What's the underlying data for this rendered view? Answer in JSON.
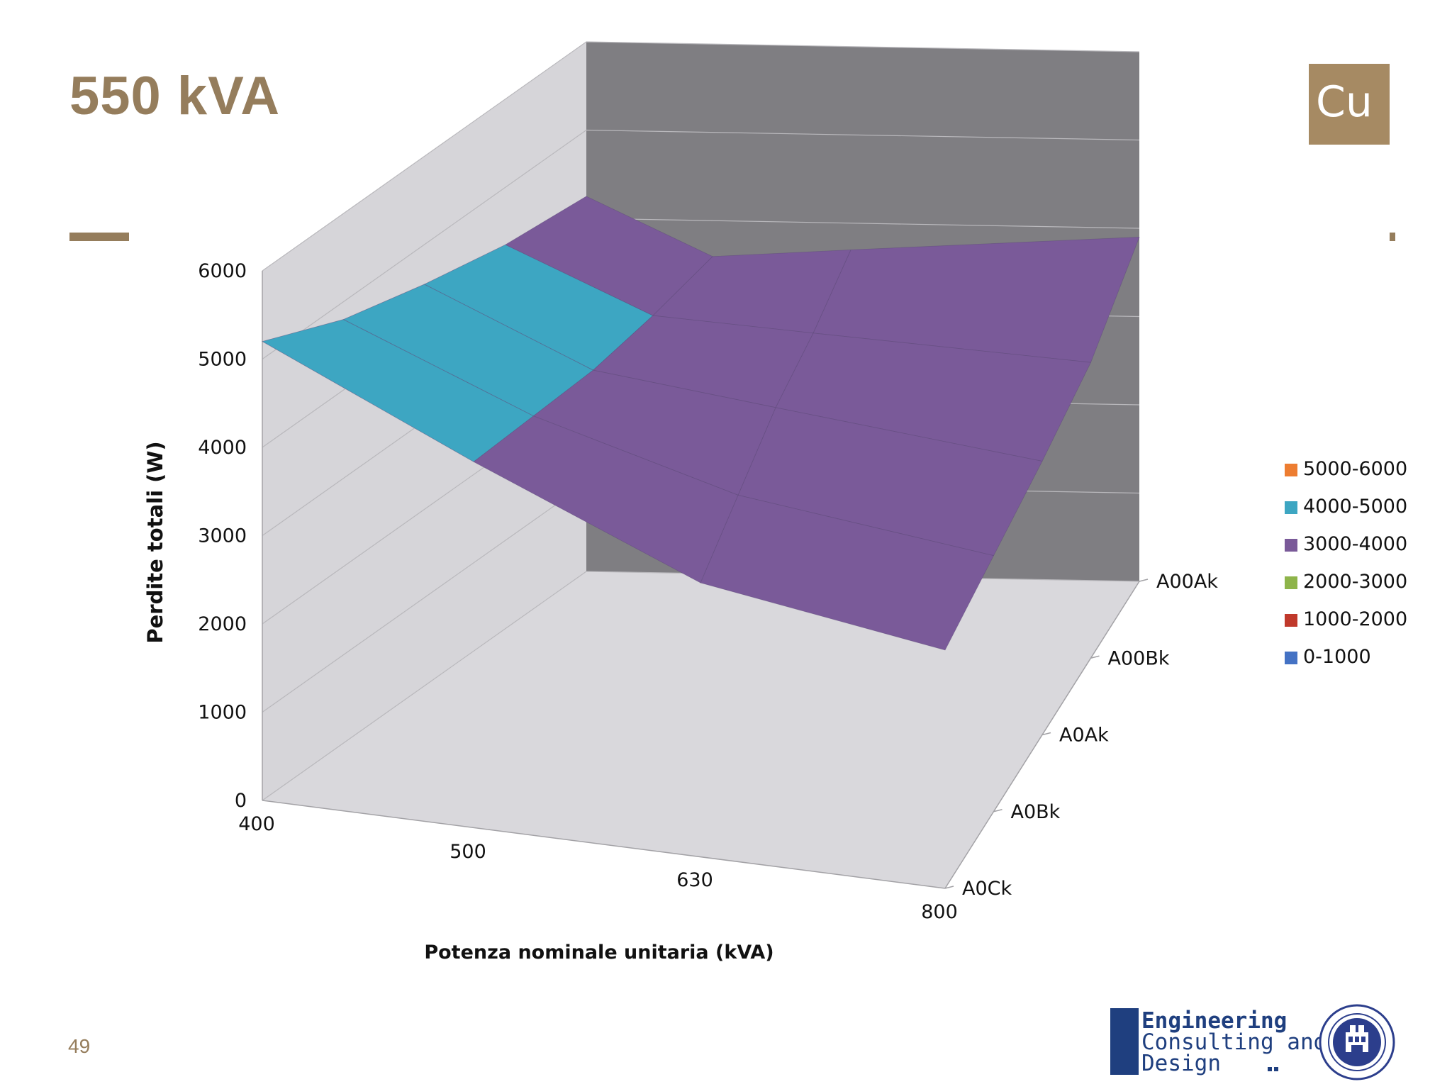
{
  "slide": {
    "title": "550 kVA",
    "badge": "Cu",
    "page_number": "49",
    "logo_lines": [
      "Engineering",
      "Consulting and",
      "Design"
    ],
    "colors": {
      "accent": "#957d5c",
      "badge": "#a68a63",
      "logo": "#1f3f7f"
    }
  },
  "chart_data": {
    "type": "surface",
    "title": "",
    "ylabel": "Perdite totali (W)",
    "xlabel": "Potenza nominale  unitaria (kVA)",
    "x_categories": [
      "400",
      "500",
      "630",
      "800"
    ],
    "depth_categories": [
      "A0Ck",
      "A0Bk",
      "A0Ak",
      "A00Bk",
      "A00Ak"
    ],
    "zlim": [
      0,
      6000
    ],
    "z_ticks": [
      "0",
      "1000",
      "2000",
      "3000",
      "4000",
      "5000",
      "6000"
    ],
    "z_values_by_depth": [
      {
        "depth": "A0Ck",
        "values": [
          5200,
          4150,
          3100,
          2700
        ]
      },
      {
        "depth": "A0Bk",
        "values": [
          4800,
          3950,
          3300,
          2900
        ]
      },
      {
        "depth": "A0Ak",
        "values": [
          4550,
          3750,
          3500,
          3100
        ]
      },
      {
        "depth": "A00Bk",
        "values": [
          4350,
          3650,
          3550,
          3350
        ]
      },
      {
        "depth": "A00Ak",
        "values": [
          4250,
          3600,
          3700,
          3900
        ]
      }
    ],
    "legend": {
      "position": "right",
      "entries": [
        {
          "label": "5000-6000",
          "color": "#ed7d31"
        },
        {
          "label": "4000-5000",
          "color": "#3da6c2"
        },
        {
          "label": "3000-4000",
          "color": "#7a5a99"
        },
        {
          "label": "2000-3000",
          "color": "#8eb44a"
        },
        {
          "label": "1000-2000",
          "color": "#c0392b"
        },
        {
          "label": "0-1000",
          "color": "#4472c4"
        }
      ]
    },
    "colors": {
      "back_wall": "#7f7e82",
      "side_wall": "#d6d5d9",
      "floor": "#d9d8dc"
    }
  }
}
